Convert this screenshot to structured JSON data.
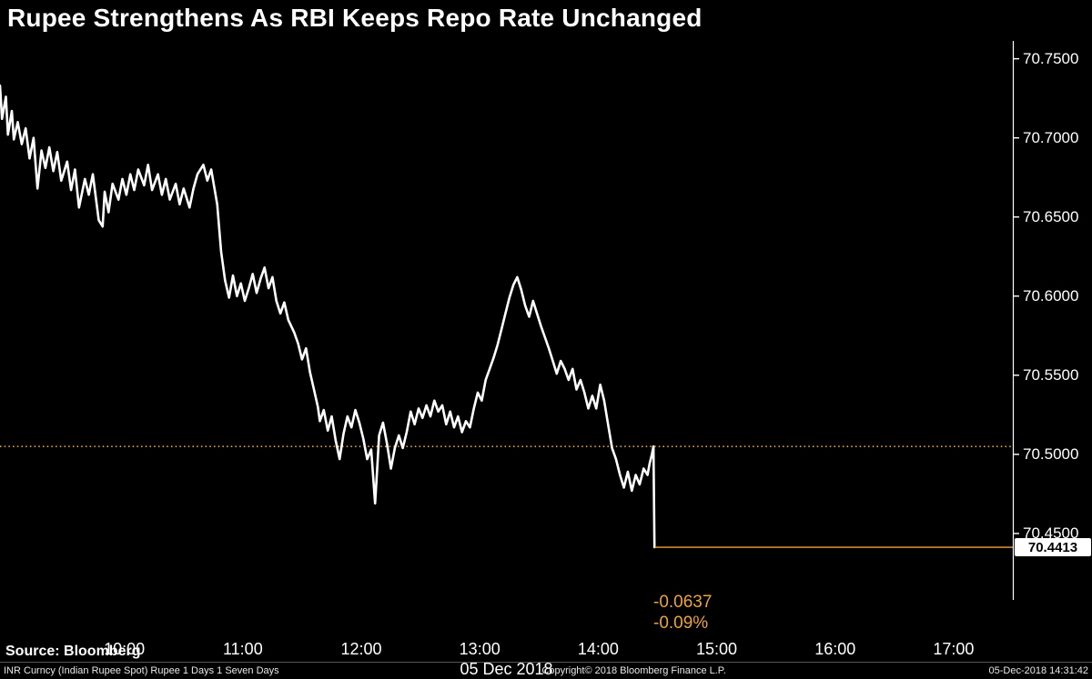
{
  "title": "Rupee Strengthens As RBI Keeps Repo Rate Unchanged",
  "source_line": "Source: Bloomberg",
  "footer": {
    "left": "INR Curncy (Indian Rupee Spot) Rupee 1 Days 1 Seven Days",
    "center": "Copyright© 2018 Bloomberg Finance L.P.",
    "right": "05-Dec-2018 14:31:42"
  },
  "colors": {
    "background": "#000000",
    "line": "#ffffff",
    "accent": "#eda33b",
    "price_box_bg": "#ffffff",
    "price_box_text": "#000000"
  },
  "chart_data": {
    "type": "line",
    "title": "Rupee Strengthens As RBI Keeps Repo Rate Unchanged",
    "legend_position": "none",
    "grid": false,
    "x_axis": {
      "label": "05 Dec 2018",
      "ticks": [
        "10:00",
        "11:00",
        "12:00",
        "13:00",
        "14:00",
        "15:00",
        "16:00",
        "17:00"
      ],
      "tick_minutes": [
        600,
        660,
        720,
        780,
        840,
        900,
        960,
        1020
      ],
      "range_minutes": [
        537,
        1050
      ]
    },
    "y_axis": {
      "ticks": [
        70.75,
        70.7,
        70.65,
        70.6,
        70.55,
        70.5,
        70.45
      ],
      "tick_labels": [
        "70.7500",
        "70.7000",
        "70.6500",
        "70.6000",
        "70.5500",
        "70.5000",
        "70.4500"
      ],
      "ylim": [
        70.408,
        70.763
      ]
    },
    "previous_close": 70.505,
    "last_price": 70.4413,
    "last_price_label": "70.4413",
    "change": "-0.0637",
    "change_pct": "-0.09%",
    "last_price_line": {
      "from_minute": 868.5,
      "to_minute": 1050,
      "value": 70.4413
    },
    "series": [
      {
        "name": "INR Curncy (Indian Rupee Spot)",
        "points": [
          [
            537,
            70.733
          ],
          [
            538,
            70.712
          ],
          [
            540,
            70.726
          ],
          [
            541,
            70.702
          ],
          [
            543,
            70.717
          ],
          [
            544,
            70.699
          ],
          [
            546,
            70.71
          ],
          [
            548,
            70.696
          ],
          [
            550,
            70.706
          ],
          [
            552,
            70.687
          ],
          [
            554,
            70.7
          ],
          [
            556,
            70.668
          ],
          [
            558,
            70.692
          ],
          [
            560,
            70.681
          ],
          [
            562,
            70.694
          ],
          [
            564,
            70.679
          ],
          [
            566,
            70.691
          ],
          [
            568,
            70.673
          ],
          [
            571,
            70.685
          ],
          [
            573,
            70.667
          ],
          [
            575,
            70.68
          ],
          [
            577,
            70.656
          ],
          [
            580,
            70.674
          ],
          [
            582,
            70.664
          ],
          [
            584,
            70.677
          ],
          [
            587,
            70.648
          ],
          [
            589,
            70.644
          ],
          [
            590,
            70.666
          ],
          [
            592,
            70.653
          ],
          [
            594,
            70.671
          ],
          [
            597,
            70.661
          ],
          [
            599,
            70.674
          ],
          [
            601,
            70.664
          ],
          [
            603,
            70.677
          ],
          [
            605,
            70.667
          ],
          [
            607,
            70.68
          ],
          [
            610,
            70.67
          ],
          [
            612,
            70.683
          ],
          [
            614,
            70.667
          ],
          [
            617,
            70.677
          ],
          [
            619,
            70.664
          ],
          [
            621,
            70.674
          ],
          [
            623,
            70.661
          ],
          [
            626,
            70.671
          ],
          [
            628,
            70.658
          ],
          [
            630,
            70.668
          ],
          [
            633,
            70.656
          ],
          [
            635,
            70.668
          ],
          [
            637,
            70.677
          ],
          [
            640,
            70.683
          ],
          [
            642,
            70.673
          ],
          [
            644,
            70.68
          ],
          [
            647,
            70.658
          ],
          [
            649,
            70.628
          ],
          [
            651,
            70.61
          ],
          [
            653,
            70.599
          ],
          [
            655,
            70.613
          ],
          [
            657,
            70.6
          ],
          [
            659,
            70.608
          ],
          [
            661,
            70.597
          ],
          [
            663,
            70.605
          ],
          [
            665,
            70.614
          ],
          [
            667,
            70.602
          ],
          [
            669,
            70.611
          ],
          [
            671,
            70.618
          ],
          [
            673,
            70.605
          ],
          [
            675,
            70.612
          ],
          [
            677,
            70.597
          ],
          [
            679,
            70.589
          ],
          [
            681,
            70.596
          ],
          [
            683,
            70.585
          ],
          [
            686,
            70.577
          ],
          [
            688,
            70.57
          ],
          [
            690,
            70.56
          ],
          [
            692,
            70.567
          ],
          [
            694,
            70.552
          ],
          [
            696,
            70.541
          ],
          [
            698,
            70.53
          ],
          [
            699,
            70.521
          ],
          [
            701,
            70.528
          ],
          [
            703,
            70.515
          ],
          [
            705,
            70.524
          ],
          [
            707,
            70.509
          ],
          [
            709,
            70.497
          ],
          [
            711,
            70.513
          ],
          [
            713,
            70.524
          ],
          [
            715,
            70.517
          ],
          [
            717,
            70.528
          ],
          [
            719,
            70.52
          ],
          [
            721,
            70.51
          ],
          [
            723,
            70.497
          ],
          [
            725,
            70.503
          ],
          [
            727,
            70.469
          ],
          [
            728,
            70.49
          ],
          [
            729,
            70.512
          ],
          [
            731,
            70.52
          ],
          [
            733,
            70.507
          ],
          [
            735,
            70.491
          ],
          [
            737,
            70.504
          ],
          [
            739,
            70.512
          ],
          [
            741,
            70.504
          ],
          [
            743,
            70.514
          ],
          [
            745,
            70.527
          ],
          [
            747,
            70.519
          ],
          [
            749,
            70.529
          ],
          [
            751,
            70.523
          ],
          [
            753,
            70.531
          ],
          [
            755,
            70.524
          ],
          [
            757,
            70.534
          ],
          [
            759,
            70.527
          ],
          [
            761,
            70.531
          ],
          [
            763,
            70.519
          ],
          [
            765,
            70.527
          ],
          [
            767,
            70.517
          ],
          [
            769,
            70.524
          ],
          [
            771,
            70.514
          ],
          [
            773,
            70.521
          ],
          [
            775,
            70.517
          ],
          [
            777,
            70.529
          ],
          [
            779,
            70.539
          ],
          [
            781,
            70.534
          ],
          [
            783,
            70.547
          ],
          [
            785,
            70.554
          ],
          [
            787,
            70.561
          ],
          [
            789,
            70.569
          ],
          [
            791,
            70.579
          ],
          [
            793,
            70.589
          ],
          [
            795,
            70.599
          ],
          [
            797,
            70.607
          ],
          [
            799,
            70.612
          ],
          [
            801,
            70.604
          ],
          [
            803,
            70.594
          ],
          [
            805,
            70.587
          ],
          [
            807,
            70.597
          ],
          [
            809,
            70.589
          ],
          [
            811,
            70.581
          ],
          [
            813,
            70.574
          ],
          [
            815,
            70.567
          ],
          [
            817,
            70.559
          ],
          [
            819,
            70.551
          ],
          [
            821,
            70.559
          ],
          [
            823,
            70.554
          ],
          [
            825,
            70.547
          ],
          [
            827,
            70.554
          ],
          [
            829,
            70.541
          ],
          [
            831,
            70.547
          ],
          [
            833,
            70.539
          ],
          [
            835,
            70.529
          ],
          [
            837,
            70.537
          ],
          [
            839,
            70.529
          ],
          [
            841,
            70.544
          ],
          [
            843,
            70.534
          ],
          [
            845,
            70.519
          ],
          [
            847,
            70.504
          ],
          [
            849,
            70.497
          ],
          [
            851,
            70.487
          ],
          [
            853,
            70.479
          ],
          [
            855,
            70.489
          ],
          [
            857,
            70.477
          ],
          [
            859,
            70.487
          ],
          [
            861,
            70.481
          ],
          [
            863,
            70.491
          ],
          [
            865,
            70.487
          ],
          [
            866,
            70.494
          ],
          [
            867,
            70.499
          ],
          [
            868,
            70.505
          ],
          [
            868.5,
            70.4413
          ]
        ]
      }
    ]
  }
}
